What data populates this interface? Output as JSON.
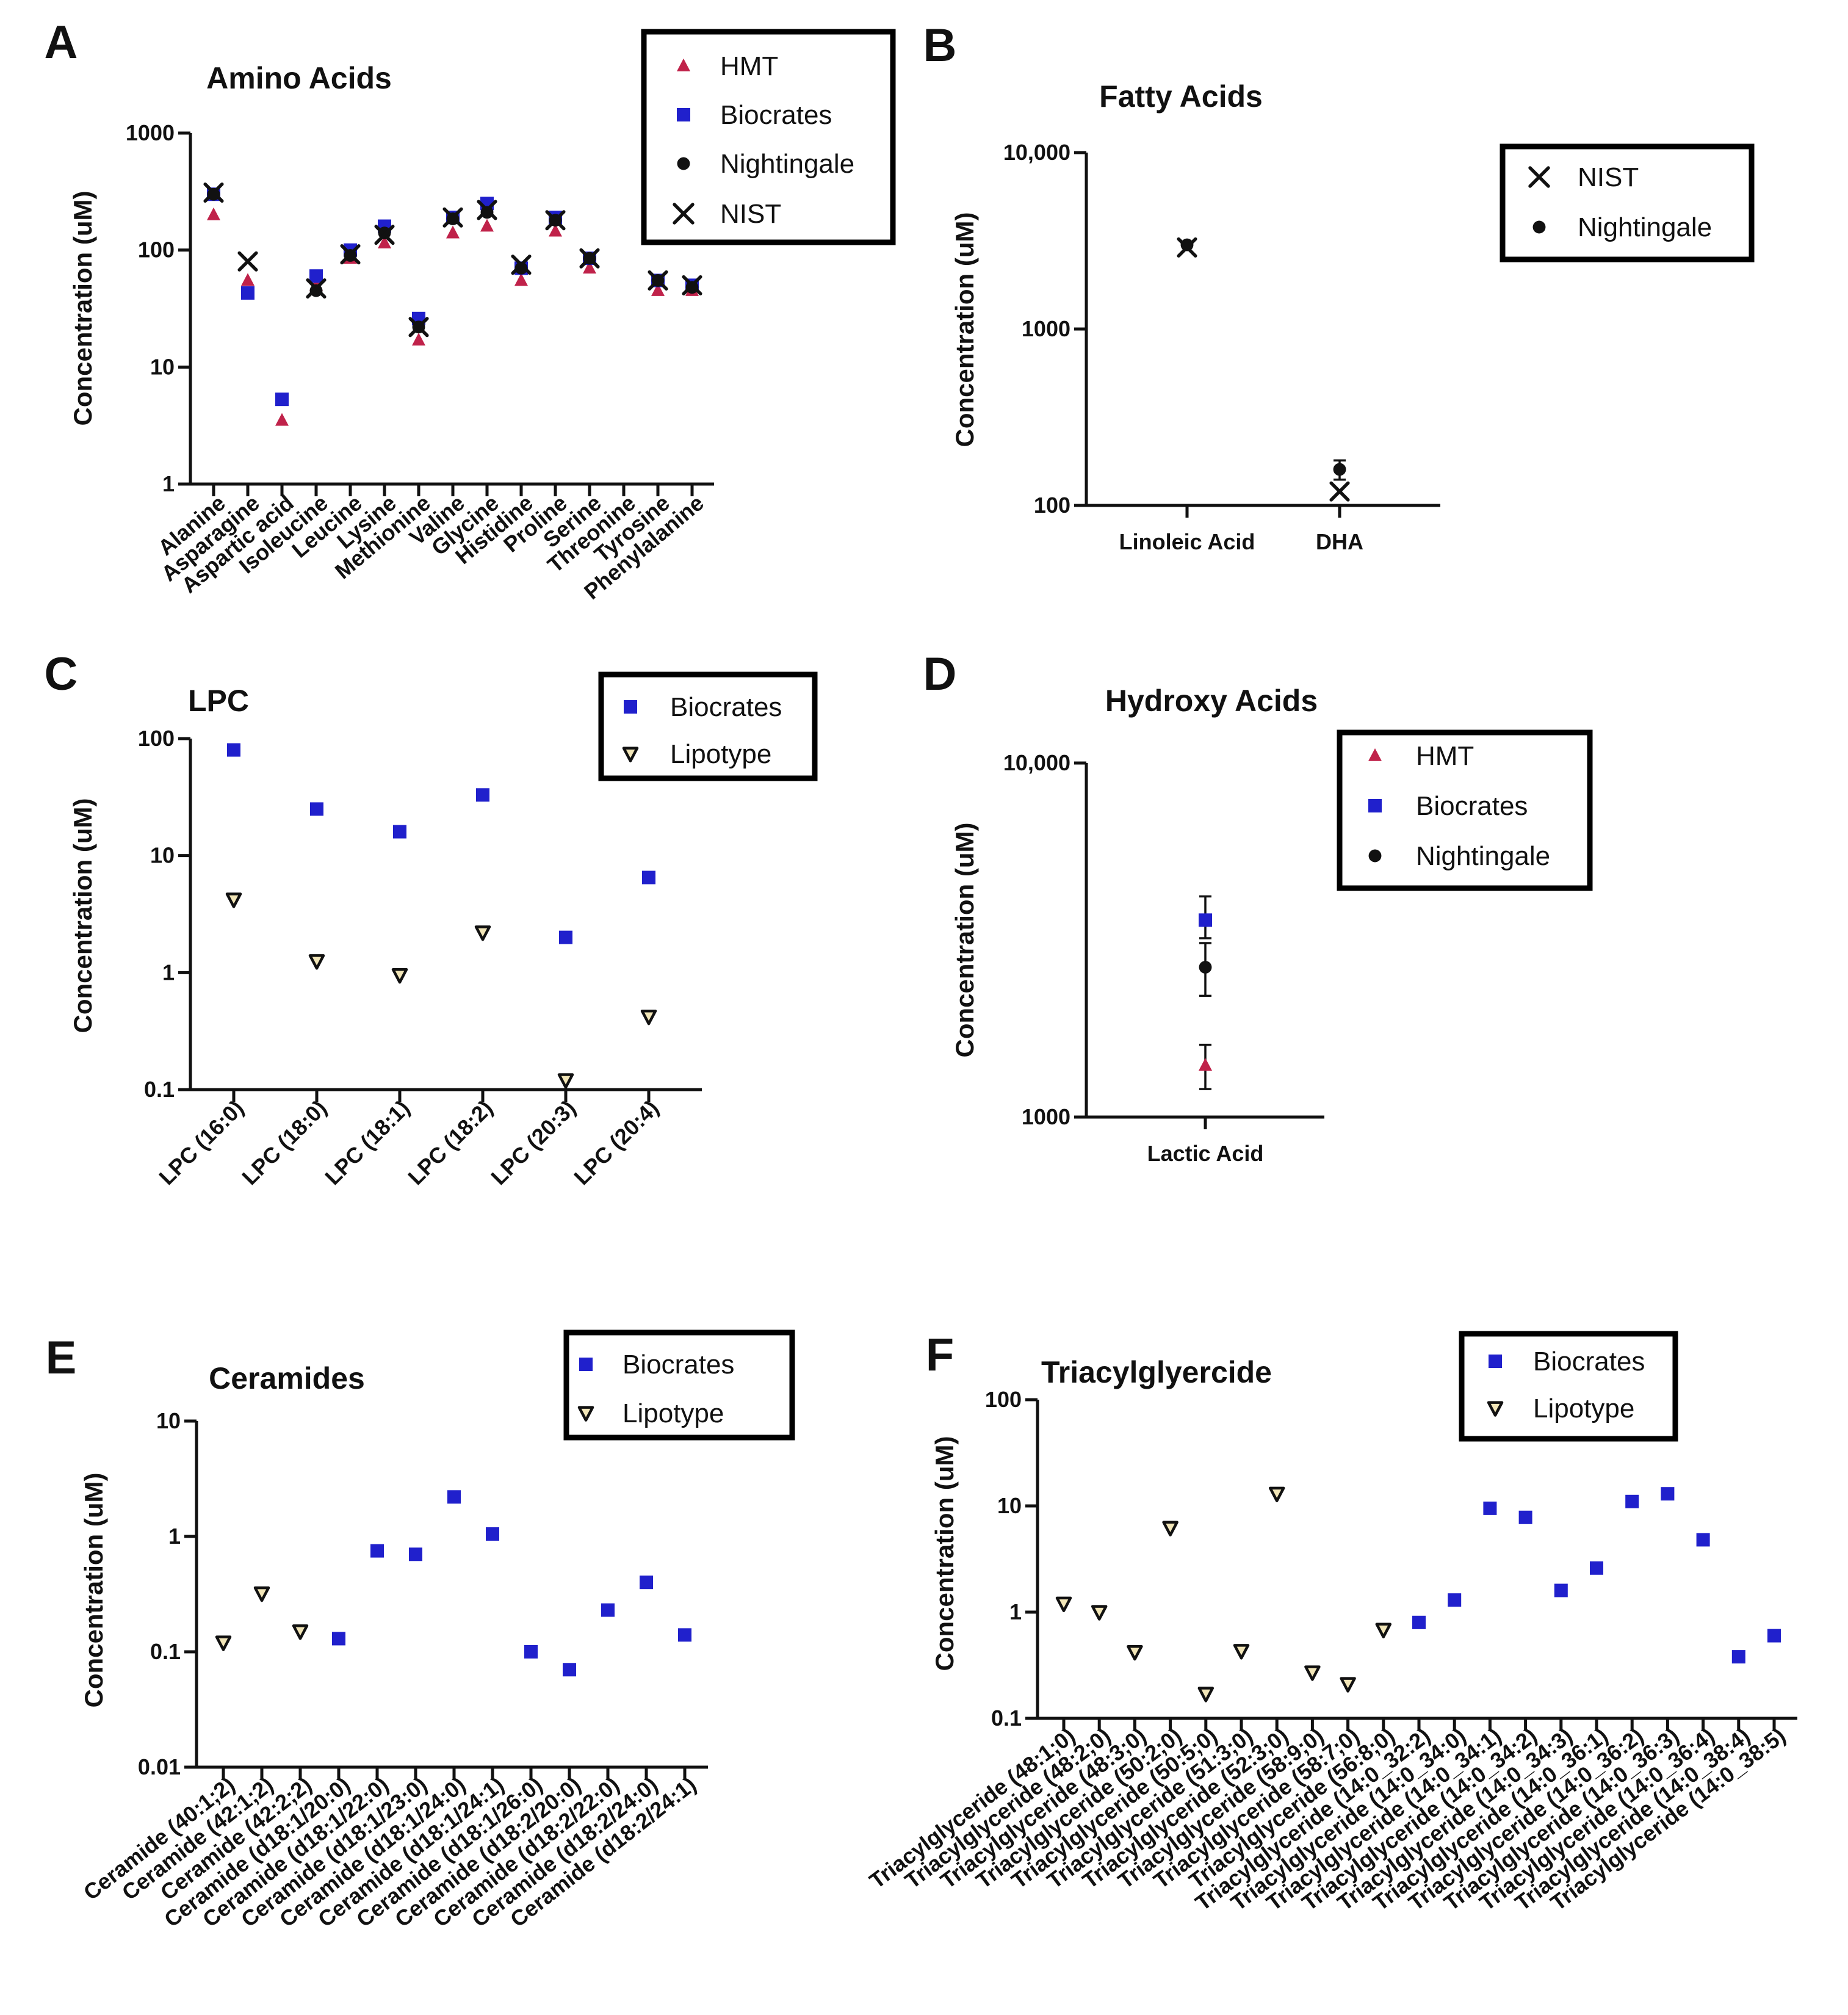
{
  "colors": {
    "HMT": "#c0224a",
    "Biocrates": "#2020cc",
    "Nightingale": "#111111",
    "NIST": "#111111",
    "Lipotype": "#7a5a10",
    "axis": "#111111"
  },
  "chart_data": [
    {
      "id": "A",
      "type": "scatter",
      "letter": "A",
      "title": "Amino Acids",
      "ylabel": "Concentration (uM)",
      "yscale": "log",
      "ylim": [
        1,
        1000
      ],
      "yticks": [
        1,
        10,
        100,
        1000
      ],
      "ytick_labels": [
        "1",
        "10",
        "100",
        "1000"
      ],
      "categories": [
        "Alanine",
        "Asparagine",
        "Aspartic acid",
        "Isoleucine",
        "Leucine",
        "Lysine",
        "Methionine",
        "Valine",
        "Glycine",
        "Histidine",
        "Proline",
        "Serine",
        "Threonine",
        "Tyrosine",
        "Phenylalanine"
      ],
      "legend": [
        "HMT",
        "Biocrates",
        "Nightingale",
        "NIST"
      ],
      "series": [
        {
          "name": "HMT",
          "marker": "triangle",
          "values": [
            200,
            55,
            3.5,
            50,
            85,
            115,
            17,
            140,
            160,
            55,
            145,
            70,
            null,
            45,
            45
          ]
        },
        {
          "name": "Biocrates",
          "marker": "square",
          "values": [
            300,
            43,
            5.3,
            60,
            100,
            160,
            26,
            190,
            250,
            70,
            190,
            85,
            null,
            55,
            50
          ]
        },
        {
          "name": "Nightingale",
          "marker": "circle",
          "values": [
            300,
            null,
            null,
            45,
            90,
            140,
            22,
            185,
            210,
            70,
            180,
            85,
            null,
            55,
            48
          ]
        },
        {
          "name": "NIST",
          "marker": "x",
          "values": [
            310,
            80,
            null,
            47,
            92,
            135,
            22,
            190,
            220,
            75,
            180,
            85,
            null,
            55,
            50
          ]
        }
      ]
    },
    {
      "id": "B",
      "type": "scatter",
      "letter": "B",
      "title": "Fatty Acids",
      "ylabel": "Concentration (uM)",
      "yscale": "log",
      "ylim": [
        100,
        10000
      ],
      "yticks": [
        100,
        1000,
        10000
      ],
      "ytick_labels": [
        "100",
        "1000",
        "10,000"
      ],
      "categories": [
        "Linoleic Acid",
        "DHA"
      ],
      "legend": [
        "NIST",
        "Nightingale"
      ],
      "series": [
        {
          "name": "NIST",
          "marker": "x",
          "values": [
            2900,
            120
          ]
        },
        {
          "name": "Nightingale",
          "marker": "circle",
          "values": [
            3000,
            160
          ],
          "errors": [
            null,
            [
              140,
              180
            ]
          ]
        }
      ]
    },
    {
      "id": "C",
      "type": "scatter",
      "letter": "C",
      "title": "LPC",
      "ylabel": "Concentration (uM)",
      "yscale": "log",
      "ylim": [
        0.1,
        100
      ],
      "yticks": [
        0.1,
        1,
        10,
        100
      ],
      "ytick_labels": [
        "0.1",
        "1",
        "10",
        "100"
      ],
      "categories": [
        "LPC (16:0)",
        "LPC (18:0)",
        "LPC (18:1)",
        "LPC (18:2)",
        "LPC (20:3)",
        "LPC (20:4)"
      ],
      "legend": [
        "Biocrates",
        "Lipotype"
      ],
      "series": [
        {
          "name": "Biocrates",
          "marker": "square",
          "values": [
            80,
            25,
            16,
            33,
            2.0,
            6.5
          ]
        },
        {
          "name": "Lipotype",
          "marker": "tri-down",
          "values": [
            4.2,
            1.25,
            0.95,
            2.2,
            0.12,
            0.42
          ]
        }
      ]
    },
    {
      "id": "D",
      "type": "scatter",
      "letter": "D",
      "title": "Hydroxy Acids",
      "ylabel": "Concentration (uM)",
      "yscale": "log",
      "ylim": [
        1000,
        10000
      ],
      "yticks": [
        1000,
        10000
      ],
      "ytick_labels": [
        "1000",
        "10,000"
      ],
      "categories": [
        "Lactic Acid"
      ],
      "legend": [
        "HMT",
        "Biocrates",
        "Nightingale"
      ],
      "series": [
        {
          "name": "HMT",
          "marker": "triangle",
          "values": [
            1400
          ],
          "errors": [
            [
              1200,
              1600
            ]
          ]
        },
        {
          "name": "Biocrates",
          "marker": "square",
          "values": [
            3600
          ],
          "errors": [
            [
              3200,
              4200
            ]
          ]
        },
        {
          "name": "Nightingale",
          "marker": "circle",
          "values": [
            2650
          ],
          "errors": [
            [
              2200,
              3100
            ]
          ]
        }
      ]
    },
    {
      "id": "E",
      "type": "scatter",
      "letter": "E",
      "title": "Ceramides",
      "ylabel": "Concentration (uM)",
      "yscale": "log",
      "ylim": [
        0.01,
        10
      ],
      "yticks": [
        0.01,
        0.1,
        1,
        10
      ],
      "ytick_labels": [
        "0.01",
        "0.1",
        "1",
        "10"
      ],
      "categories": [
        "Ceramide (40:1;2)",
        "Ceramide (42:1;2)",
        "Ceramide (42:2;2)",
        "Ceramide (d18:1/20:0)",
        "Ceramide (d18:1/22:0)",
        "Ceramide (d18:1/23:0)",
        "Ceramide (d18:1/24:0)",
        "Ceramide (d18:1/24:1)",
        "Ceramide (d18:1/26:0)",
        "Ceramide (d18:2/20:0)",
        "Ceramide (d18:2/22:0)",
        "Ceramide (d18:2/24:0)",
        "Ceramide (d18:2/24:1)"
      ],
      "legend": [
        "Biocrates",
        "Lipotype"
      ],
      "series": [
        {
          "name": "Biocrates",
          "marker": "square",
          "values": [
            null,
            null,
            null,
            0.13,
            0.75,
            0.7,
            2.2,
            1.05,
            0.1,
            0.07,
            0.23,
            0.4,
            0.14
          ]
        },
        {
          "name": "Lipotype",
          "marker": "tri-down",
          "values": [
            0.12,
            0.32,
            0.15,
            null,
            null,
            null,
            null,
            null,
            null,
            null,
            null,
            null,
            null
          ]
        }
      ]
    },
    {
      "id": "F",
      "type": "scatter",
      "letter": "F",
      "title": "Triacylglyercide",
      "ylabel": "Concentration (uM)",
      "yscale": "log",
      "ylim": [
        0.1,
        100
      ],
      "yticks": [
        0.1,
        1,
        10,
        100
      ],
      "ytick_labels": [
        "0.1",
        "1",
        "10",
        "100"
      ],
      "categories": [
        "Triacylglyceride (48:1;0)",
        "Triacylglyceride (48:2;0)",
        "Triacylglyceride (48:3;0)",
        "Triacylglyceride (50:2;0)",
        "Triacylglyceride (50:5;0)",
        "Triacylglyceride (51:3;0)",
        "Triacylglyceride (52:3;0)",
        "Triacylglyceride (58:9;0)",
        "Triacylglyceride (58:7;0)",
        "Triacylglyceride (56:8;0)",
        "Triacylglyceride (14:0_32:2)",
        "Triacylglyceride (14:0_34:0)",
        "Triacylglyceride (14:0_34:1)",
        "Triacylglyceride (14:0_34:2)",
        "Triacylglyceride (14:0_34:3)",
        "Triacylglyceride (14:0_36:1)",
        "Triacylglyceride (14:0_36:2)",
        "Triacylglyceride (14:0_36:3)",
        "Triacylglyceride (14:0_36:4)",
        "Triacylglyceride (14:0_38:4)",
        "Triacylglyceride (14:0_38:5)"
      ],
      "legend": [
        "Biocrates",
        "Lipotype"
      ],
      "series": [
        {
          "name": "Biocrates",
          "marker": "square",
          "values": [
            null,
            null,
            null,
            null,
            null,
            null,
            null,
            null,
            null,
            null,
            0.8,
            1.3,
            9.5,
            7.8,
            1.6,
            2.6,
            11,
            13,
            4.8,
            0.38,
            0.6
          ]
        },
        {
          "name": "Lipotype",
          "marker": "tri-down",
          "values": [
            1.2,
            1.0,
            0.42,
            6.2,
            0.17,
            0.43,
            13,
            0.27,
            0.21,
            0.68,
            null,
            null,
            null,
            null,
            null,
            null,
            null,
            null,
            null,
            null,
            null
          ]
        }
      ]
    }
  ]
}
